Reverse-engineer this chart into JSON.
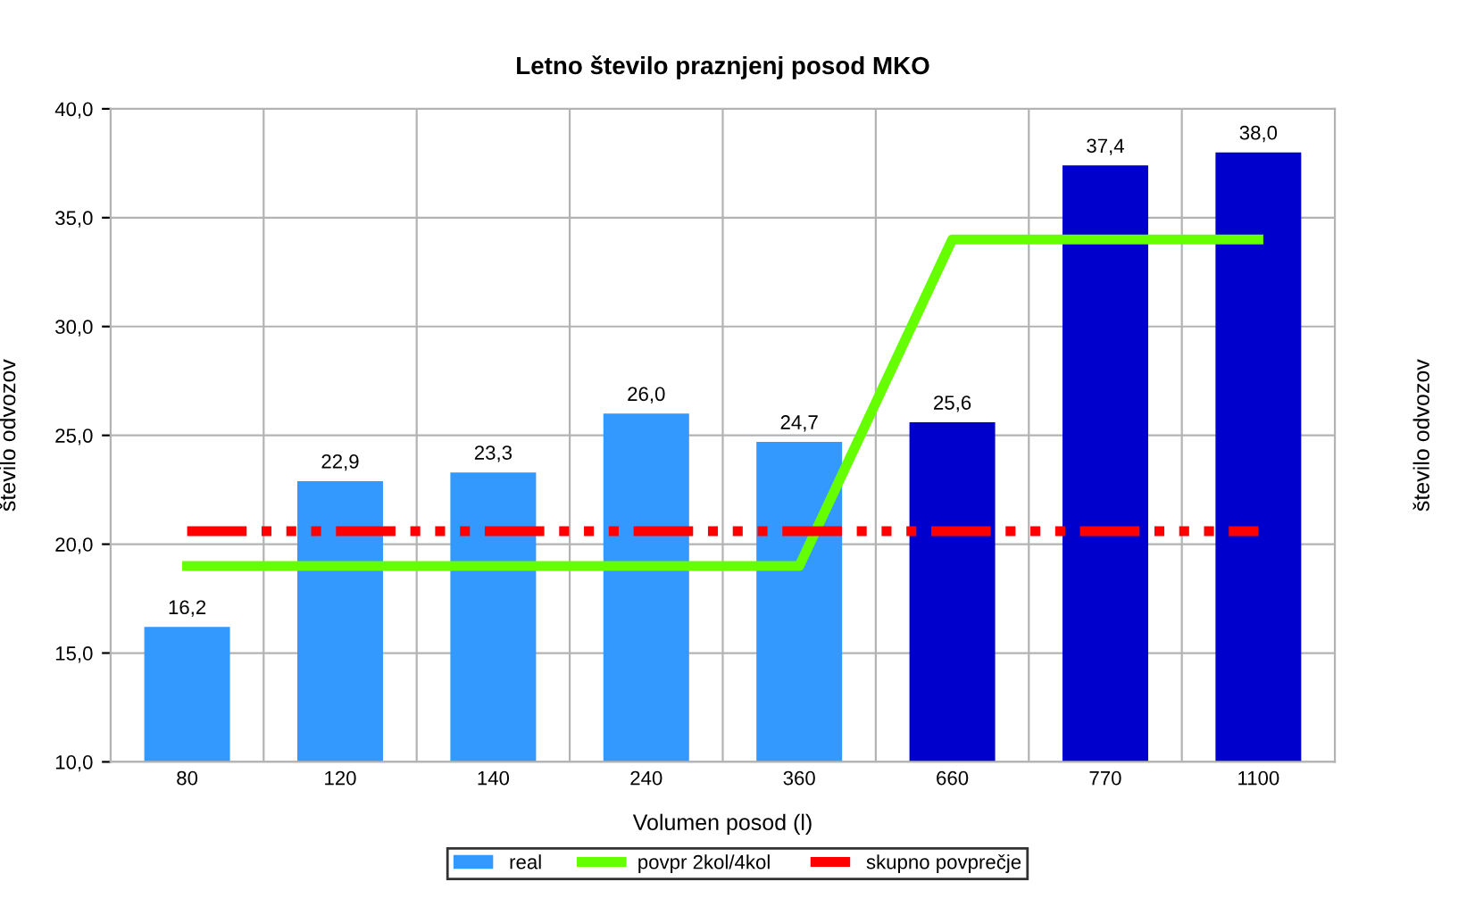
{
  "chart_data": {
    "type": "bar",
    "title": "Letno število praznjenj posod MKO",
    "xlabel": "Volumen posod (l)",
    "ylabel": "število odvozov",
    "y2label": "število odvozov",
    "categories": [
      "80",
      "120",
      "140",
      "240",
      "360",
      "660",
      "770",
      "1100"
    ],
    "series": [
      {
        "name": "real",
        "color": "#3399ff",
        "colors": [
          "#3399ff",
          "#3399ff",
          "#3399ff",
          "#3399ff",
          "#3399ff",
          "#0000cc",
          "#0000cc",
          "#0000cc"
        ],
        "values": [
          16.2,
          22.9,
          23.3,
          26.0,
          24.7,
          25.6,
          37.4,
          38.0
        ],
        "value_labels": [
          "16,2",
          "22,9",
          "23,3",
          "26,0",
          "24,7",
          "25,6",
          "37,4",
          "38,0"
        ]
      },
      {
        "name": "povpr 2kol/4kol",
        "type": "line",
        "color": "#66ff00",
        "line_style": "solid",
        "values": [
          19.0,
          19.0,
          19.0,
          19.0,
          19.0,
          34.0,
          34.0,
          34.0
        ]
      },
      {
        "name": "skupno povprečje",
        "type": "line",
        "color": "#ff0000",
        "line_style": "dashed",
        "values": [
          20.6,
          20.6,
          20.6,
          20.6,
          20.6,
          20.6,
          20.6,
          20.6
        ]
      }
    ],
    "ylim": [
      10,
      40
    ],
    "yticks": [
      {
        "value": 10,
        "label": "10,0"
      },
      {
        "value": 15,
        "label": "15,0"
      },
      {
        "value": 20,
        "label": "20,0"
      },
      {
        "value": 25,
        "label": "25,0"
      },
      {
        "value": 30,
        "label": "30,0"
      },
      {
        "value": 35,
        "label": "35,0"
      },
      {
        "value": 40,
        "label": "40,0"
      }
    ],
    "grid": true,
    "legend": "bottom",
    "marker": "none"
  }
}
